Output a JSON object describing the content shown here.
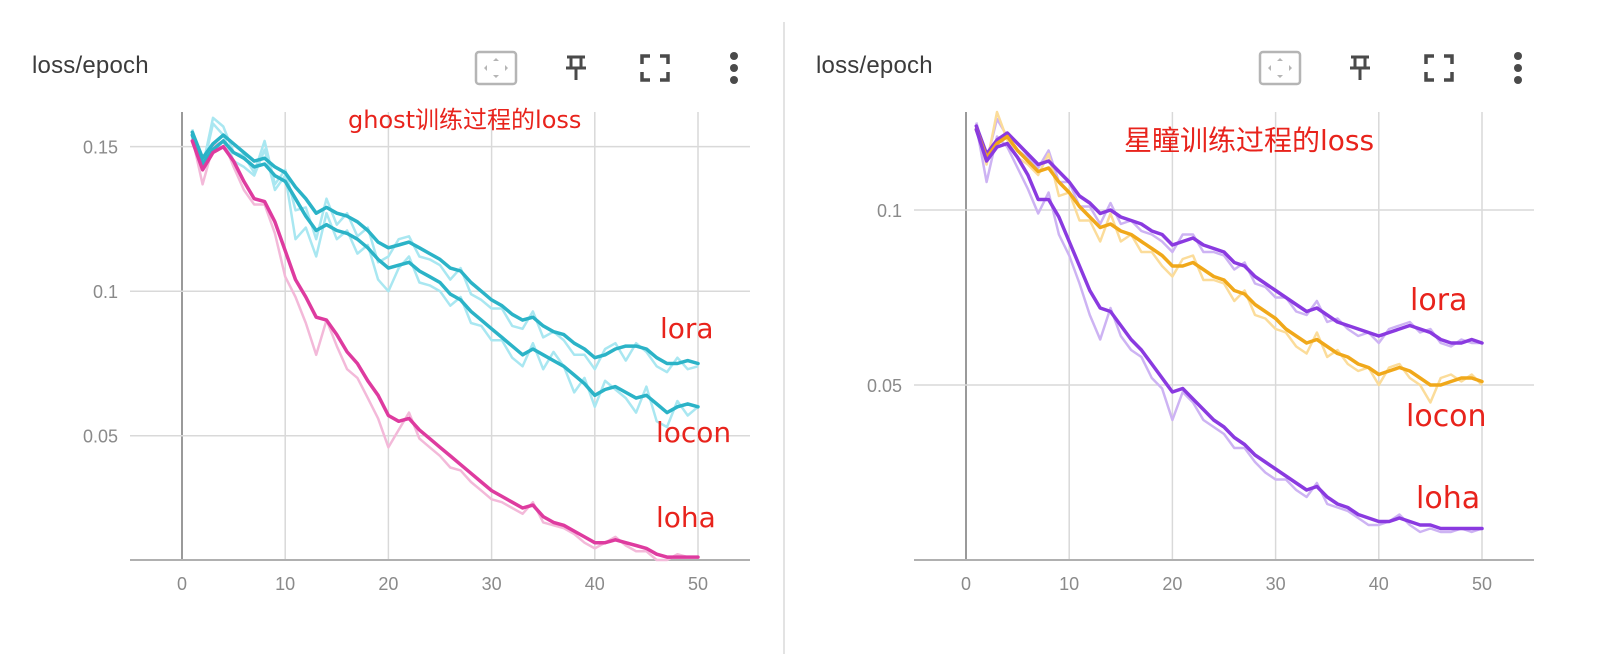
{
  "panels": [
    {
      "title": "loss/epoch",
      "annotation": "ghost训练过程的loss",
      "toolbar": [
        "fit-domain-icon",
        "pin-icon",
        "fullscreen-icon",
        "more-vert-icon"
      ]
    },
    {
      "title": "loss/epoch",
      "annotation": "星瞳训练过程的loss",
      "toolbar": [
        "fit-domain-icon",
        "pin-icon",
        "fullscreen-icon",
        "more-vert-icon"
      ]
    }
  ],
  "colors": {
    "cyan": "#2bb3c7",
    "cyan_raw": "#a9e7f1",
    "magenta": "#de3b9f",
    "magenta_raw": "#f3b9d9",
    "purple": "#8a3ae0",
    "purple_raw": "#cdb3f3",
    "orange": "#f0a81a",
    "orange_raw": "#fbdc9a",
    "annotation": "#e8231c",
    "grid": "#d9d9d9",
    "axis": "#b0b0b0"
  },
  "chart_data": [
    {
      "type": "line",
      "title": "loss/epoch",
      "annotation": "ghost训练过程的loss",
      "xlabel": "",
      "ylabel": "",
      "xlim": [
        -5,
        55
      ],
      "ylim": [
        0.007,
        0.162
      ],
      "xticks": [
        "0",
        "10",
        "20",
        "30",
        "40",
        "50"
      ],
      "xtick_values": [
        0,
        10,
        20,
        30,
        40,
        50
      ],
      "yticks": [
        "0.05",
        "0.1",
        "0.15"
      ],
      "ytick_values": [
        0.05,
        0.1,
        0.15
      ],
      "grid": true,
      "series": [
        {
          "name": "lora",
          "label": "lora",
          "color_key": "cyan",
          "x": [
            1,
            2,
            3,
            4,
            5,
            6,
            7,
            8,
            9,
            10,
            11,
            12,
            13,
            14,
            15,
            16,
            17,
            18,
            19,
            20,
            21,
            22,
            23,
            24,
            25,
            26,
            27,
            28,
            29,
            30,
            31,
            32,
            33,
            34,
            35,
            36,
            37,
            38,
            39,
            40,
            41,
            42,
            43,
            44,
            45,
            46,
            47,
            48,
            49,
            50
          ],
          "smoothed": [
            0.155,
            0.146,
            0.151,
            0.154,
            0.151,
            0.148,
            0.145,
            0.146,
            0.143,
            0.141,
            0.136,
            0.132,
            0.127,
            0.129,
            0.127,
            0.126,
            0.124,
            0.121,
            0.117,
            0.115,
            0.116,
            0.117,
            0.115,
            0.113,
            0.111,
            0.108,
            0.107,
            0.103,
            0.1,
            0.097,
            0.095,
            0.092,
            0.09,
            0.091,
            0.088,
            0.086,
            0.085,
            0.082,
            0.08,
            0.077,
            0.078,
            0.08,
            0.081,
            0.081,
            0.08,
            0.077,
            0.075,
            0.075,
            0.076,
            0.075
          ],
          "raw": [
            0.156,
            0.143,
            0.16,
            0.157,
            0.148,
            0.147,
            0.141,
            0.152,
            0.137,
            0.142,
            0.128,
            0.129,
            0.118,
            0.132,
            0.123,
            0.127,
            0.119,
            0.122,
            0.11,
            0.112,
            0.118,
            0.119,
            0.112,
            0.111,
            0.109,
            0.104,
            0.108,
            0.099,
            0.097,
            0.094,
            0.094,
            0.088,
            0.087,
            0.093,
            0.084,
            0.086,
            0.083,
            0.078,
            0.078,
            0.073,
            0.08,
            0.082,
            0.076,
            0.082,
            0.079,
            0.074,
            0.072,
            0.077,
            0.073,
            0.074
          ]
        },
        {
          "name": "locon",
          "label": "locon",
          "color_key": "cyan",
          "x": [
            1,
            2,
            3,
            4,
            5,
            6,
            7,
            8,
            9,
            10,
            11,
            12,
            13,
            14,
            15,
            16,
            17,
            18,
            19,
            20,
            21,
            22,
            23,
            24,
            25,
            26,
            27,
            28,
            29,
            30,
            31,
            32,
            33,
            34,
            35,
            36,
            37,
            38,
            39,
            40,
            41,
            42,
            43,
            44,
            45,
            46,
            47,
            48,
            49,
            50
          ],
          "smoothed": [
            0.154,
            0.144,
            0.149,
            0.152,
            0.148,
            0.146,
            0.143,
            0.144,
            0.14,
            0.138,
            0.132,
            0.126,
            0.121,
            0.123,
            0.121,
            0.12,
            0.118,
            0.115,
            0.111,
            0.108,
            0.109,
            0.11,
            0.107,
            0.105,
            0.103,
            0.099,
            0.097,
            0.093,
            0.09,
            0.087,
            0.084,
            0.081,
            0.078,
            0.08,
            0.078,
            0.076,
            0.074,
            0.071,
            0.068,
            0.064,
            0.066,
            0.067,
            0.065,
            0.063,
            0.064,
            0.061,
            0.058,
            0.06,
            0.061,
            0.06
          ],
          "raw": [
            0.155,
            0.142,
            0.158,
            0.154,
            0.145,
            0.143,
            0.14,
            0.149,
            0.135,
            0.14,
            0.118,
            0.122,
            0.112,
            0.127,
            0.118,
            0.121,
            0.113,
            0.116,
            0.104,
            0.1,
            0.108,
            0.112,
            0.103,
            0.102,
            0.1,
            0.095,
            0.098,
            0.089,
            0.088,
            0.083,
            0.083,
            0.077,
            0.074,
            0.082,
            0.073,
            0.079,
            0.074,
            0.065,
            0.07,
            0.06,
            0.069,
            0.066,
            0.063,
            0.058,
            0.067,
            0.055,
            0.053,
            0.062,
            0.057,
            0.06
          ]
        },
        {
          "name": "loha",
          "label": "loha",
          "color_key": "magenta",
          "x": [
            1,
            2,
            3,
            4,
            5,
            6,
            7,
            8,
            9,
            10,
            11,
            12,
            13,
            14,
            15,
            16,
            17,
            18,
            19,
            20,
            21,
            22,
            23,
            24,
            25,
            26,
            27,
            28,
            29,
            30,
            31,
            32,
            33,
            34,
            35,
            36,
            37,
            38,
            39,
            40,
            41,
            42,
            43,
            44,
            45,
            46,
            47,
            48,
            49,
            50
          ],
          "smoothed": [
            0.152,
            0.142,
            0.148,
            0.15,
            0.145,
            0.138,
            0.132,
            0.131,
            0.124,
            0.114,
            0.104,
            0.098,
            0.091,
            0.09,
            0.085,
            0.079,
            0.075,
            0.069,
            0.064,
            0.057,
            0.055,
            0.056,
            0.052,
            0.049,
            0.046,
            0.043,
            0.04,
            0.037,
            0.034,
            0.031,
            0.029,
            0.027,
            0.025,
            0.026,
            0.022,
            0.02,
            0.019,
            0.017,
            0.015,
            0.013,
            0.013,
            0.014,
            0.013,
            0.012,
            0.011,
            0.009,
            0.008,
            0.008,
            0.008,
            0.008
          ],
          "raw": [
            0.153,
            0.137,
            0.15,
            0.152,
            0.143,
            0.135,
            0.13,
            0.13,
            0.12,
            0.105,
            0.098,
            0.089,
            0.078,
            0.09,
            0.081,
            0.073,
            0.07,
            0.063,
            0.056,
            0.046,
            0.052,
            0.058,
            0.049,
            0.046,
            0.043,
            0.039,
            0.038,
            0.034,
            0.031,
            0.028,
            0.027,
            0.025,
            0.023,
            0.027,
            0.02,
            0.019,
            0.018,
            0.016,
            0.013,
            0.011,
            0.013,
            0.015,
            0.012,
            0.01,
            0.01,
            0.007,
            0.007,
            0.009,
            0.008,
            0.008
          ]
        }
      ]
    },
    {
      "type": "line",
      "title": "loss/epoch",
      "annotation": "星瞳训练过程的loss",
      "xlabel": "",
      "ylabel": "",
      "xlim": [
        -5,
        55
      ],
      "ylim": [
        0.0,
        0.128
      ],
      "xticks": [
        "0",
        "10",
        "20",
        "30",
        "40",
        "50"
      ],
      "xtick_values": [
        0,
        10,
        20,
        30,
        40,
        50
      ],
      "yticks": [
        "0.05",
        "0.1"
      ],
      "ytick_values": [
        0.05,
        0.1
      ],
      "grid": true,
      "series": [
        {
          "name": "lora",
          "label": "lora",
          "color_key": "purple",
          "x": [
            1,
            2,
            3,
            4,
            5,
            6,
            7,
            8,
            9,
            10,
            11,
            12,
            13,
            14,
            15,
            16,
            17,
            18,
            19,
            20,
            21,
            22,
            23,
            24,
            25,
            26,
            27,
            28,
            29,
            30,
            31,
            32,
            33,
            34,
            35,
            36,
            37,
            38,
            39,
            40,
            41,
            42,
            43,
            44,
            45,
            46,
            47,
            48,
            49,
            50
          ],
          "smoothed": [
            0.124,
            0.116,
            0.12,
            0.122,
            0.119,
            0.116,
            0.113,
            0.114,
            0.111,
            0.108,
            0.104,
            0.102,
            0.099,
            0.1,
            0.098,
            0.097,
            0.096,
            0.094,
            0.093,
            0.09,
            0.091,
            0.092,
            0.09,
            0.089,
            0.088,
            0.085,
            0.084,
            0.081,
            0.079,
            0.077,
            0.075,
            0.073,
            0.071,
            0.072,
            0.07,
            0.068,
            0.067,
            0.066,
            0.065,
            0.064,
            0.065,
            0.066,
            0.067,
            0.066,
            0.065,
            0.063,
            0.062,
            0.062,
            0.063,
            0.062
          ],
          "raw": [
            0.125,
            0.114,
            0.126,
            0.121,
            0.117,
            0.115,
            0.112,
            0.117,
            0.108,
            0.108,
            0.101,
            0.101,
            0.096,
            0.102,
            0.096,
            0.097,
            0.094,
            0.093,
            0.091,
            0.088,
            0.093,
            0.093,
            0.088,
            0.088,
            0.087,
            0.083,
            0.085,
            0.079,
            0.078,
            0.075,
            0.075,
            0.071,
            0.07,
            0.074,
            0.068,
            0.069,
            0.066,
            0.064,
            0.065,
            0.062,
            0.066,
            0.067,
            0.068,
            0.065,
            0.066,
            0.062,
            0.061,
            0.063,
            0.062,
            0.062
          ]
        },
        {
          "name": "locon",
          "label": "locon",
          "color_key": "orange",
          "x": [
            1,
            2,
            3,
            4,
            5,
            6,
            7,
            8,
            9,
            10,
            11,
            12,
            13,
            14,
            15,
            16,
            17,
            18,
            19,
            20,
            21,
            22,
            23,
            24,
            25,
            26,
            27,
            28,
            29,
            30,
            31,
            32,
            33,
            34,
            35,
            36,
            37,
            38,
            39,
            40,
            41,
            42,
            43,
            44,
            45,
            46,
            47,
            48,
            49,
            50
          ],
          "smoothed": [
            0.123,
            0.115,
            0.119,
            0.121,
            0.117,
            0.114,
            0.111,
            0.112,
            0.108,
            0.105,
            0.101,
            0.098,
            0.095,
            0.096,
            0.094,
            0.093,
            0.091,
            0.089,
            0.087,
            0.084,
            0.084,
            0.085,
            0.083,
            0.081,
            0.08,
            0.077,
            0.076,
            0.073,
            0.071,
            0.069,
            0.066,
            0.064,
            0.062,
            0.063,
            0.061,
            0.059,
            0.058,
            0.056,
            0.055,
            0.053,
            0.054,
            0.055,
            0.054,
            0.052,
            0.05,
            0.05,
            0.051,
            0.052,
            0.052,
            0.051
          ],
          "raw": [
            0.124,
            0.113,
            0.128,
            0.12,
            0.115,
            0.113,
            0.11,
            0.116,
            0.104,
            0.105,
            0.097,
            0.097,
            0.091,
            0.099,
            0.091,
            0.093,
            0.088,
            0.088,
            0.084,
            0.081,
            0.086,
            0.087,
            0.08,
            0.08,
            0.079,
            0.074,
            0.077,
            0.07,
            0.069,
            0.066,
            0.065,
            0.061,
            0.059,
            0.065,
            0.058,
            0.06,
            0.056,
            0.054,
            0.055,
            0.05,
            0.055,
            0.056,
            0.052,
            0.05,
            0.045,
            0.052,
            0.053,
            0.051,
            0.053,
            0.05
          ]
        },
        {
          "name": "loha",
          "label": "loha",
          "color_key": "purple",
          "x": [
            1,
            2,
            3,
            4,
            5,
            6,
            7,
            8,
            9,
            10,
            11,
            12,
            13,
            14,
            15,
            16,
            17,
            18,
            19,
            20,
            21,
            22,
            23,
            24,
            25,
            26,
            27,
            28,
            29,
            30,
            31,
            32,
            33,
            34,
            35,
            36,
            37,
            38,
            39,
            40,
            41,
            42,
            43,
            44,
            45,
            46,
            47,
            48,
            49,
            50
          ],
          "smoothed": [
            0.123,
            0.114,
            0.118,
            0.119,
            0.115,
            0.11,
            0.103,
            0.103,
            0.098,
            0.091,
            0.084,
            0.077,
            0.072,
            0.071,
            0.067,
            0.063,
            0.06,
            0.056,
            0.052,
            0.048,
            0.049,
            0.046,
            0.043,
            0.04,
            0.038,
            0.035,
            0.033,
            0.03,
            0.028,
            0.026,
            0.024,
            0.022,
            0.02,
            0.021,
            0.018,
            0.016,
            0.015,
            0.013,
            0.012,
            0.011,
            0.011,
            0.012,
            0.011,
            0.01,
            0.01,
            0.009,
            0.009,
            0.009,
            0.009,
            0.009
          ],
          "raw": [
            0.124,
            0.108,
            0.121,
            0.118,
            0.112,
            0.106,
            0.099,
            0.105,
            0.093,
            0.087,
            0.079,
            0.07,
            0.063,
            0.072,
            0.064,
            0.06,
            0.058,
            0.052,
            0.049,
            0.04,
            0.048,
            0.045,
            0.04,
            0.038,
            0.036,
            0.032,
            0.032,
            0.028,
            0.025,
            0.023,
            0.023,
            0.02,
            0.018,
            0.022,
            0.016,
            0.015,
            0.014,
            0.012,
            0.01,
            0.01,
            0.011,
            0.013,
            0.01,
            0.008,
            0.009,
            0.008,
            0.008,
            0.009,
            0.008,
            0.009
          ]
        }
      ]
    }
  ]
}
